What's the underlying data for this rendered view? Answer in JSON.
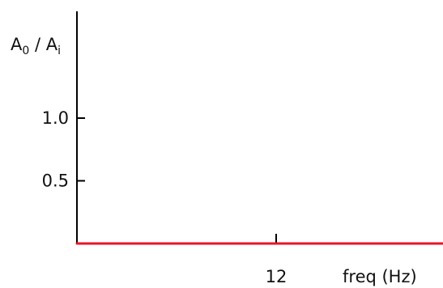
{
  "chart_data": {
    "type": "line",
    "title": "",
    "xlabel": "freq (Hz)",
    "ylabel": {
      "base1": "A",
      "sub1": "0",
      "separator": " / ",
      "base2": "A",
      "sub2": "i"
    },
    "xlim": [
      0,
      24
    ],
    "ylim": [
      0,
      1.2
    ],
    "x_ticks": [
      {
        "value": 12,
        "label": "12"
      }
    ],
    "y_ticks": [
      {
        "value": 0.5,
        "label": "0.5"
      },
      {
        "value": 1.0,
        "label": "1.0"
      }
    ],
    "series": [
      {
        "color": "#e8162a",
        "x": [
          0,
          12,
          24
        ],
        "y": [
          0,
          0,
          0
        ]
      }
    ],
    "grid": false,
    "legend": "none"
  }
}
